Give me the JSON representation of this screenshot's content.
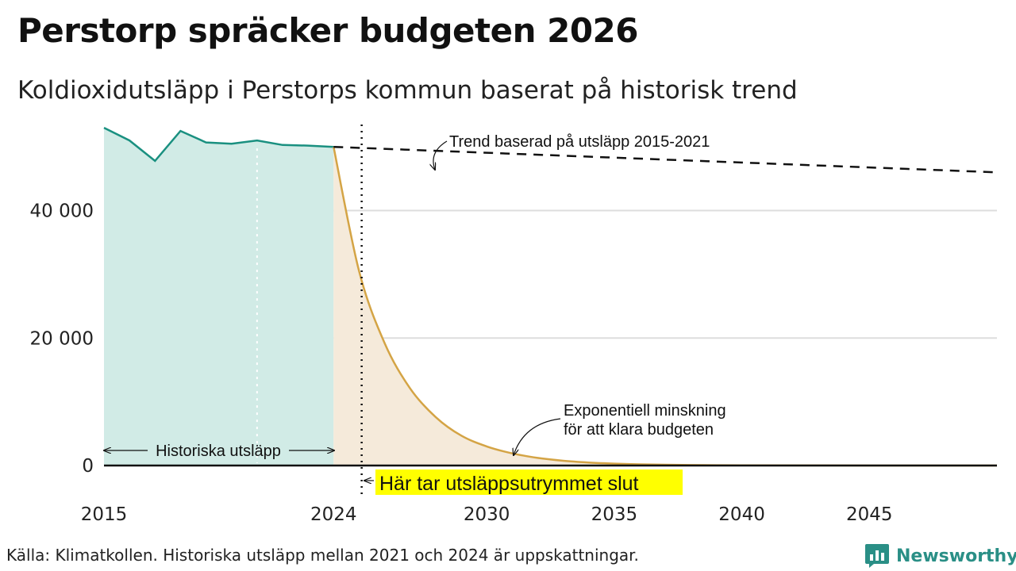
{
  "title": "Perstorp spräcker budgeten 2026",
  "subtitle": "Koldioxidutsläpp i Perstorps kommun baserat på historisk trend",
  "source": "Källa: Klimatkollen. Historiska utsläpp mellan 2021 och 2024 är uppskattningar.",
  "brand": {
    "name": "Newsworthy",
    "icon": "newsworthy-logo-icon",
    "color": "#2a8f86"
  },
  "colors": {
    "historical_line": "#1a9080",
    "historical_fill": "#d1ebe6",
    "budget_line": "#d4a445",
    "budget_fill": "#f5eada",
    "trend_line": "#111111",
    "highlight": "#ffff00",
    "grid": "#dddddd"
  },
  "chart_data": {
    "type": "area",
    "ylim": [
      0,
      55000
    ],
    "xlim": [
      2015,
      2050
    ],
    "y_ticks": [
      0,
      20000,
      40000
    ],
    "y_tick_labels": [
      "0",
      "20 000",
      "40 000"
    ],
    "x_ticks": [
      2015,
      2024,
      2030,
      2035,
      2040,
      2045
    ],
    "x_tick_labels": [
      "2015",
      "2024",
      "2030",
      "2035",
      "2040",
      "2045"
    ],
    "series": [
      {
        "name": "Historiska utsläpp",
        "x": [
          2015,
          2016,
          2017,
          2018,
          2019,
          2020,
          2021,
          2022,
          2023,
          2024
        ],
        "values": [
          53000,
          51000,
          47800,
          52500,
          50700,
          50500,
          51000,
          50300,
          50200,
          50000
        ]
      },
      {
        "name": "Exponentiell minskning för att klara budgeten",
        "x": [
          2024,
          2025,
          2026,
          2027,
          2028,
          2029,
          2030,
          2031,
          2032,
          2033,
          2034,
          2035,
          2036,
          2037,
          2038,
          2039,
          2040,
          2045,
          2050
        ],
        "values": [
          50000,
          30500,
          19200,
          12100,
          7600,
          4700,
          3000,
          1900,
          1200,
          750,
          470,
          300,
          190,
          120,
          75,
          47,
          30,
          3,
          0
        ]
      },
      {
        "name": "Trend baserad på utsläpp 2015-2021",
        "x": [
          2024,
          2050
        ],
        "values": [
          50000,
          46000
        ]
      }
    ],
    "budget_end_year": 2025.1,
    "annotations": {
      "trend": "Trend baserad på utsläpp 2015-2021",
      "exp_line1": "Exponentiell minskning",
      "exp_line2": "för att klara budgeten",
      "historical": "Historiska utsläpp",
      "budget_end": "Här tar utsläppsutrymmet slut"
    }
  }
}
